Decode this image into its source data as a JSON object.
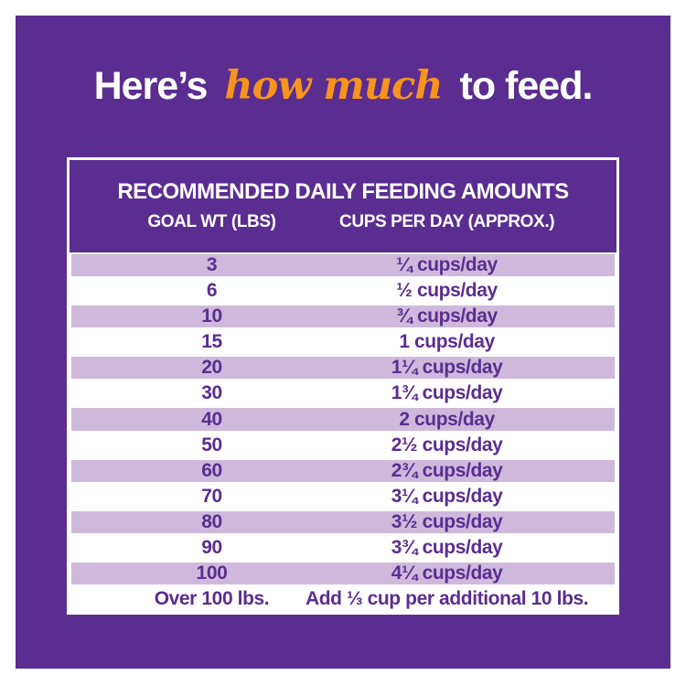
{
  "theme": {
    "page_background": "#ffffff",
    "panel_purple": "#5B2D90",
    "stripe_light_purple": "#CEB9DC",
    "accent_orange": "#F7941E",
    "table_text_purple": "#5B2D90",
    "header_text_white": "#ffffff"
  },
  "headline": {
    "prefix": "Here’s",
    "highlight": "how much",
    "suffix": "to feed."
  },
  "table": {
    "heading": "RECOMMENDED DAILY FEEDING AMOUNTS",
    "columns": [
      "GOAL WT (LBS)",
      "CUPS PER DAY (APPROX.)"
    ],
    "rows": [
      {
        "weight": "3",
        "cups": "¼ cups/day"
      },
      {
        "weight": "6",
        "cups": "½ cups/day"
      },
      {
        "weight": "10",
        "cups": "¾ cups/day"
      },
      {
        "weight": "15",
        "cups": "1 cups/day"
      },
      {
        "weight": "20",
        "cups": "1¼ cups/day"
      },
      {
        "weight": "30",
        "cups": "1¾ cups/day"
      },
      {
        "weight": "40",
        "cups": "2 cups/day"
      },
      {
        "weight": "50",
        "cups": "2½ cups/day"
      },
      {
        "weight": "60",
        "cups": "2¾ cups/day"
      },
      {
        "weight": "70",
        "cups": "3¼ cups/day"
      },
      {
        "weight": "80",
        "cups": "3½ cups/day"
      },
      {
        "weight": "90",
        "cups": "3¾ cups/day"
      },
      {
        "weight": "100",
        "cups": "4¼ cups/day"
      },
      {
        "weight": "Over 100 lbs.",
        "cups": "Add ⅓ cup per additional 10 lbs."
      }
    ]
  },
  "chart_data": {
    "type": "table",
    "title": "RECOMMENDED DAILY FEEDING AMOUNTS",
    "columns": [
      "GOAL WT (LBS)",
      "CUPS PER DAY (APPROX.)"
    ],
    "goal_weight_lbs": [
      3,
      6,
      10,
      15,
      20,
      30,
      40,
      50,
      60,
      70,
      80,
      90,
      100
    ],
    "cups_per_day": [
      0.25,
      0.5,
      0.75,
      1,
      1.25,
      1.75,
      2,
      2.5,
      2.75,
      3.25,
      3.5,
      3.75,
      4.25
    ],
    "overflow_rule": "Over 100 lbs.: Add ⅓ cup per additional 10 lbs.",
    "layout_hints": "alternating light-purple/white row stripes, header band in brand purple, all text centered per column"
  }
}
